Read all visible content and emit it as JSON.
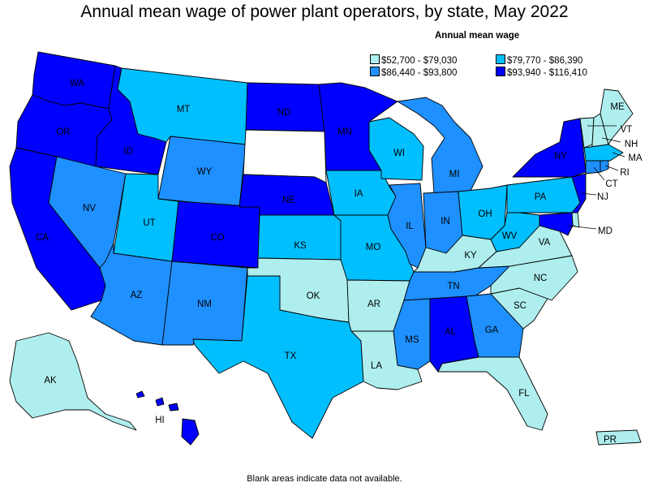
{
  "title": "Annual mean wage of power plant operators, by state, May 2022",
  "legend": {
    "title": "Annual mean wage",
    "items": [
      {
        "label": "$52,700 - $79,030",
        "color": "#afeeee"
      },
      {
        "label": "$79,770 - $86,390",
        "color": "#00bfff"
      },
      {
        "label": "$86,440 - $93,800",
        "color": "#1e90ff"
      },
      {
        "label": "$93,940 - $116,410",
        "color": "#0000ff"
      }
    ]
  },
  "footnote": "Blank areas indicate data not available.",
  "chart_data": {
    "type": "choropleth",
    "classes": [
      "$52,700 - $79,030",
      "$79,770 - $86,390",
      "$86,440 - $93,800",
      "$93,940 - $116,410"
    ],
    "states": {
      "WA": 3,
      "OR": 3,
      "CA": 3,
      "ID": 3,
      "NV": 2,
      "MT": 1,
      "WY": 2,
      "UT": 1,
      "AZ": 2,
      "CO": 3,
      "NM": 2,
      "ND": 3,
      "SD": null,
      "NE": 3,
      "KS": 1,
      "OK": 0,
      "TX": 1,
      "MN": 3,
      "IA": 1,
      "MO": 1,
      "AR": 0,
      "LA": 0,
      "WI": 1,
      "IL": 2,
      "MI": 2,
      "IN": 2,
      "OH": 1,
      "KY": 0,
      "TN": 2,
      "MS": 2,
      "AL": 3,
      "GA": 2,
      "FL": 0,
      "SC": 0,
      "NC": 0,
      "VA": 0,
      "WV": 1,
      "PA": 1,
      "NY": 3,
      "VT": 0,
      "NH": 0,
      "ME": 0,
      "MA": 1,
      "RI": 2,
      "CT": 2,
      "NJ": 3,
      "DE": 0,
      "MD": 3,
      "AK": 0,
      "HI": 3,
      "PR": 0
    }
  }
}
